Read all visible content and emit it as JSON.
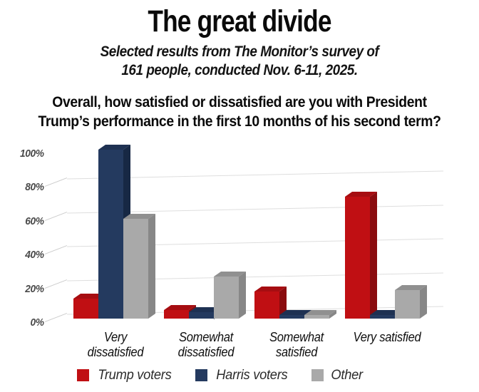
{
  "header": {
    "title": "The great divide",
    "subtitle_lines": [
      "Selected results from The Monitor’s survey of",
      "161 people, conducted Nov. 6-11, 2025."
    ],
    "question_lines": [
      "Overall, how satisfied or dissatisfied are you with President",
      "Trump’s performance in the first 10 months of his second term?"
    ]
  },
  "chart_data": {
    "type": "bar",
    "style": "3d-clustered",
    "title": "",
    "xlabel": "",
    "ylabel": "",
    "ylim": [
      0,
      100
    ],
    "grid": true,
    "legend_position": "bottom",
    "yticks": [
      "0%",
      "20%",
      "40%",
      "60%",
      "80%",
      "100%"
    ],
    "categories": [
      "Very dissatisfied",
      "Somewhat dissatisfied",
      "Somewhat satisfied",
      "Very satisfied"
    ],
    "series": [
      {
        "name": "Trump voters",
        "color": "#c00f13",
        "color_top": "#a60d11",
        "color_side": "#8a0b0e",
        "values": [
          12,
          5,
          16,
          72
        ]
      },
      {
        "name": "Harris voters",
        "color": "#243a5f",
        "color_top": "#1e3152",
        "color_side": "#172844",
        "values": [
          100,
          4,
          2,
          2
        ]
      },
      {
        "name": "Other",
        "color": "#a9a9a9",
        "color_top": "#909090",
        "color_side": "#878787",
        "values": [
          59,
          25,
          2,
          17
        ]
      }
    ]
  }
}
